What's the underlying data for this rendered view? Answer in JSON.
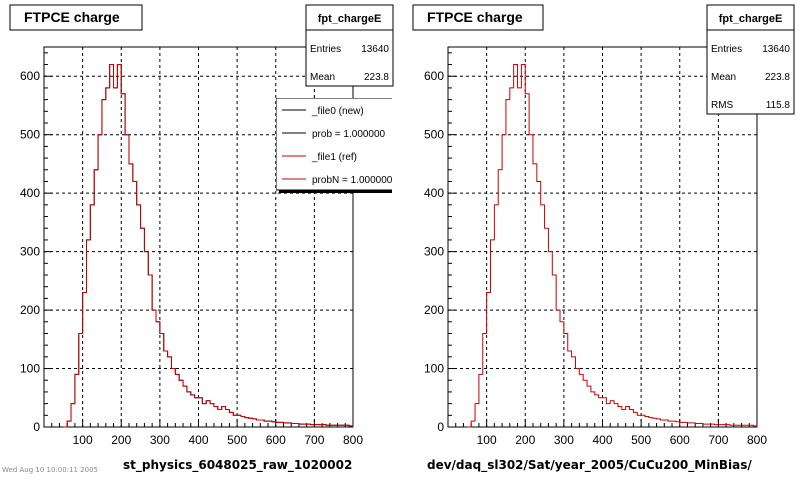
{
  "colors": {
    "new_line": "#000000",
    "ref_line": "#cc0000",
    "grid": "#000000",
    "background": "#ffffff"
  },
  "panels": [
    {
      "title": "FTPCE charge",
      "footer": "st_physics_6048025_raw_1020002"
    },
    {
      "title": "FTPCE charge",
      "footer": "dev/daq_sl302/Sat/year_2005/CuCu200_MinBias/"
    }
  ],
  "stats_left": {
    "name": "fpt_chargeE",
    "rows": [
      {
        "label": "Entries",
        "value": "13640"
      },
      {
        "label": "Mean",
        "value": "223.8"
      }
    ]
  },
  "stats_right": {
    "name": "fpt_chargeE",
    "rows": [
      {
        "label": "Entries",
        "value": "13640"
      },
      {
        "label": "Mean",
        "value": "223.8"
      },
      {
        "label": "RMS",
        "value": "115.8"
      }
    ]
  },
  "legend": {
    "items": [
      {
        "label": "_file0 (new)",
        "color": "#000000"
      },
      {
        "label": "prob = 1.000000",
        "color": "#000000"
      },
      {
        "label": "_file1 (ref)",
        "color": "#cc0000"
      },
      {
        "label": "probN = 1.000000",
        "color": "#cc0000"
      }
    ]
  },
  "tiny_text": "Wed Aug 10 10:00:11 2005",
  "chart_data": [
    {
      "type": "histogram",
      "title": "FTPCE charge",
      "xlabel": "st_physics_6048025_raw_1020002",
      "ylabel": "",
      "xlim": [
        0,
        800
      ],
      "ylim": [
        0,
        650
      ],
      "xticks": [
        100,
        200,
        300,
        400,
        500,
        600,
        700,
        800
      ],
      "yticks": [
        0,
        100,
        200,
        300,
        400,
        500,
        600
      ],
      "grid": true,
      "bin_width": 10,
      "x_start": 50,
      "series": [
        {
          "name": "_file0 (new)",
          "values": [
            0,
            10,
            40,
            90,
            160,
            230,
            320,
            380,
            440,
            500,
            560,
            580,
            620,
            580,
            620,
            570,
            500,
            450,
            420,
            380,
            340,
            300,
            260,
            200,
            180,
            160,
            130,
            120,
            100,
            90,
            80,
            70,
            60,
            55,
            50,
            50,
            40,
            45,
            40,
            35,
            30,
            35,
            30,
            25,
            20,
            20,
            18,
            16,
            15,
            14,
            12,
            12,
            10,
            10,
            9,
            8,
            8,
            7,
            7,
            6,
            6,
            5,
            5,
            5,
            4,
            4,
            4,
            4,
            3,
            3,
            3,
            3,
            3,
            3,
            2
          ]
        },
        {
          "name": "_file1 (ref)",
          "values": [
            0,
            10,
            40,
            90,
            160,
            230,
            320,
            380,
            440,
            500,
            560,
            580,
            620,
            580,
            620,
            570,
            500,
            450,
            420,
            380,
            340,
            300,
            260,
            200,
            180,
            160,
            130,
            120,
            100,
            90,
            80,
            70,
            60,
            55,
            50,
            50,
            40,
            45,
            40,
            35,
            30,
            35,
            30,
            25,
            20,
            20,
            18,
            16,
            15,
            14,
            12,
            12,
            10,
            10,
            9,
            8,
            8,
            7,
            7,
            6,
            6,
            5,
            5,
            5,
            4,
            4,
            4,
            4,
            3,
            3,
            3,
            3,
            3,
            3,
            2
          ]
        }
      ]
    },
    {
      "type": "histogram",
      "title": "FTPCE charge",
      "xlabel": "dev/daq_sl302/Sat/year_2005/CuCu200_MinBias/",
      "ylabel": "",
      "xlim": [
        0,
        800
      ],
      "ylim": [
        0,
        650
      ],
      "xticks": [
        100,
        200,
        300,
        400,
        500,
        600,
        700,
        800
      ],
      "yticks": [
        0,
        100,
        200,
        300,
        400,
        500,
        600
      ],
      "grid": true,
      "bin_width": 10,
      "x_start": 50,
      "series": [
        {
          "name": "",
          "values": [
            0,
            10,
            40,
            90,
            160,
            230,
            320,
            380,
            440,
            500,
            560,
            580,
            620,
            580,
            620,
            570,
            500,
            450,
            420,
            380,
            340,
            300,
            260,
            200,
            180,
            160,
            130,
            120,
            100,
            90,
            80,
            70,
            60,
            55,
            50,
            50,
            40,
            45,
            40,
            35,
            30,
            35,
            30,
            25,
            20,
            20,
            18,
            16,
            15,
            14,
            12,
            12,
            10,
            10,
            9,
            8,
            8,
            7,
            7,
            6,
            6,
            5,
            5,
            5,
            4,
            4,
            4,
            4,
            3,
            3,
            3,
            3,
            3,
            3,
            2
          ]
        }
      ]
    }
  ]
}
